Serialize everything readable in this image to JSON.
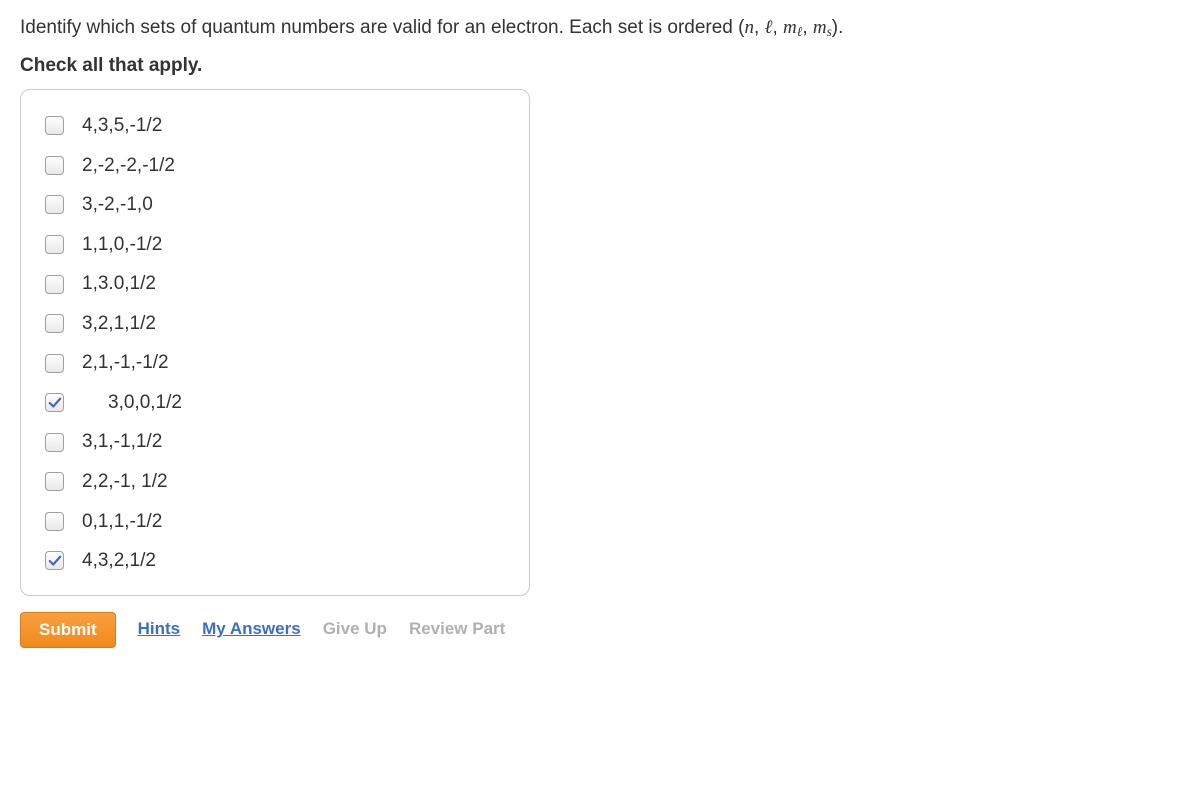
{
  "question": {
    "prefix": "Identify which sets of quantum numbers are valid for an electron. Each set is ordered ",
    "formula_n": "n",
    "formula_l": "ℓ",
    "formula_ml": "m",
    "formula_ml_sub": "ℓ",
    "formula_ms": "m",
    "formula_ms_sub": "s",
    "suffix": "."
  },
  "instructions": "Check all that apply.",
  "options": [
    {
      "label": "4,3,5,-1/2",
      "checked": false,
      "indent": false
    },
    {
      "label": "2,-2,-2,-1/2",
      "checked": false,
      "indent": false
    },
    {
      "label": "3,-2,-1,0",
      "checked": false,
      "indent": false
    },
    {
      "label": "1,1,0,-1/2",
      "checked": false,
      "indent": false
    },
    {
      "label": "1,3.0,1/2",
      "checked": false,
      "indent": false
    },
    {
      "label": "3,2,1,1/2",
      "checked": false,
      "indent": false
    },
    {
      "label": "2,1,-1,-1/2",
      "checked": false,
      "indent": false
    },
    {
      "label": "3,0,0,1/2",
      "checked": true,
      "indent": true
    },
    {
      "label": "3,1,-1,1/2",
      "checked": false,
      "indent": false
    },
    {
      "label": "2,2,-1, 1/2",
      "checked": false,
      "indent": false
    },
    {
      "label": "0,1,1,-1/2",
      "checked": false,
      "indent": false
    },
    {
      "label": "4,3,2,1/2",
      "checked": true,
      "indent": false
    }
  ],
  "actions": {
    "submit": "Submit",
    "hints": "Hints",
    "my_answers": "My Answers",
    "give_up": "Give Up",
    "review_part": "Review Part"
  },
  "colors": {
    "text": "#333333",
    "link": "#3b6fc4",
    "muted": "#b0b0b0",
    "submit_bg": "#f08a1d",
    "box_border": "#cccccc",
    "checkmark": "#4760c9"
  }
}
